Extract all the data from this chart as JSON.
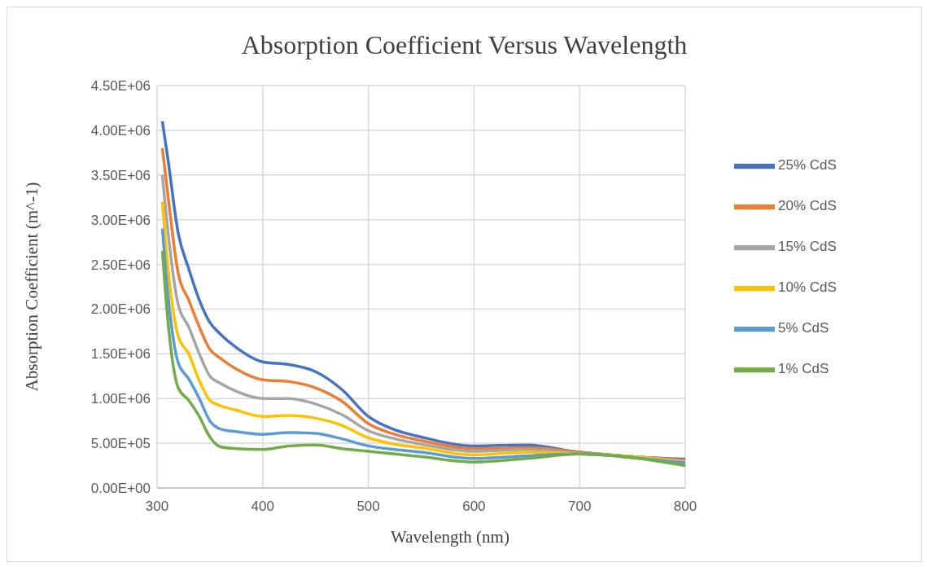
{
  "chart_data": {
    "type": "line",
    "title": "Absorption Coefficient Versus Wavelength",
    "xlabel": "Wavelength (nm)",
    "ylabel": "Absorption Coefficient (m^-1)",
    "x": [
      305,
      310,
      320,
      330,
      340,
      350,
      360,
      375,
      400,
      425,
      450,
      475,
      500,
      525,
      550,
      600,
      650,
      700,
      750,
      800
    ],
    "series": [
      {
        "name": "25% CdS",
        "color": "#4472c4",
        "values": [
          4100000,
          3700000,
          2850000,
          2450000,
          2100000,
          1850000,
          1720000,
          1570000,
          1410000,
          1380000,
          1300000,
          1100000,
          800000,
          650000,
          570000,
          470000,
          480000,
          400000,
          350000,
          320000
        ]
      },
      {
        "name": "20% CdS",
        "color": "#ed7d31",
        "values": [
          3800000,
          3300000,
          2400000,
          2100000,
          1800000,
          1550000,
          1450000,
          1330000,
          1210000,
          1190000,
          1120000,
          970000,
          720000,
          600000,
          530000,
          440000,
          450000,
          400000,
          350000,
          310000
        ]
      },
      {
        "name": "15% CdS",
        "color": "#a5a5a5",
        "values": [
          3500000,
          2900000,
          2050000,
          1800000,
          1500000,
          1250000,
          1170000,
          1080000,
          1000000,
          1000000,
          940000,
          820000,
          640000,
          550000,
          490000,
          410000,
          430000,
          390000,
          350000,
          300000
        ]
      },
      {
        "name": "10% CdS",
        "color": "#ffc000",
        "values": [
          3200000,
          2500000,
          1700000,
          1500000,
          1200000,
          980000,
          920000,
          870000,
          800000,
          810000,
          780000,
          700000,
          560000,
          490000,
          450000,
          370000,
          400000,
          380000,
          350000,
          290000
        ]
      },
      {
        "name": "5% CdS",
        "color": "#5b9bd5",
        "values": [
          2900000,
          2200000,
          1400000,
          1220000,
          1000000,
          750000,
          660000,
          630000,
          600000,
          620000,
          610000,
          550000,
          470000,
          430000,
          400000,
          330000,
          360000,
          380000,
          340000,
          280000
        ]
      },
      {
        "name": "1% CdS",
        "color": "#70ad47",
        "values": [
          2650000,
          1900000,
          1120000,
          980000,
          800000,
          570000,
          460000,
          440000,
          430000,
          470000,
          480000,
          440000,
          410000,
          380000,
          350000,
          290000,
          330000,
          380000,
          340000,
          250000
        ]
      }
    ],
    "xlim": [
      300,
      800
    ],
    "xticks": [
      300,
      400,
      500,
      600,
      700,
      800
    ],
    "ylim": [
      0,
      4500000
    ],
    "yticks": [
      {
        "value": 0,
        "label": "0.00E+00"
      },
      {
        "value": 500000,
        "label": "5.00E+05"
      },
      {
        "value": 1000000,
        "label": "1.00E+06"
      },
      {
        "value": 1500000,
        "label": "1.50E+06"
      },
      {
        "value": 2000000,
        "label": "2.00E+06"
      },
      {
        "value": 2500000,
        "label": "2.50E+06"
      },
      {
        "value": 3000000,
        "label": "3.00E+06"
      },
      {
        "value": 3500000,
        "label": "3.50E+06"
      },
      {
        "value": 4000000,
        "label": "4.00E+06"
      },
      {
        "value": 4500000,
        "label": "4.50E+06"
      }
    ],
    "grid": true,
    "legend": "right",
    "marker": "none",
    "line_style": "solid"
  }
}
